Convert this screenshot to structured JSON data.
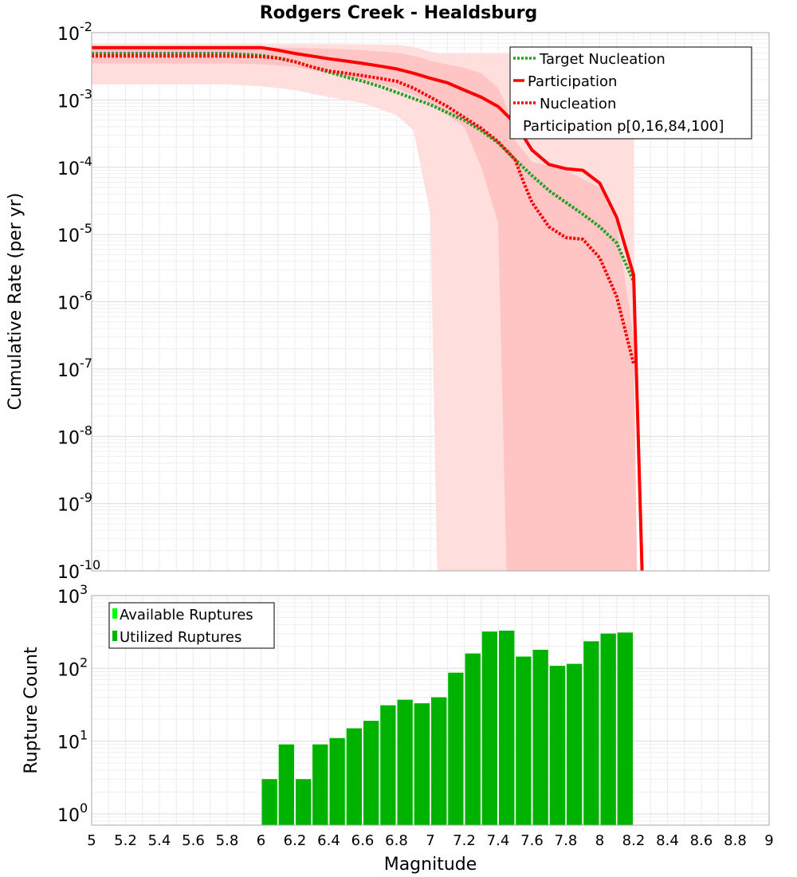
{
  "chart_data": [
    {
      "type": "line",
      "title": "Rodgers Creek - Healdsburg",
      "xlabel": "",
      "ylabel": "Cumulative Rate (per yr)",
      "xlim": [
        5,
        9
      ],
      "ylim": [
        1e-10,
        0.01
      ],
      "yscale": "log",
      "grid": true,
      "legend_position": "top-right",
      "ytick_labels": [
        {
          "value": 0.01,
          "base": "10",
          "exp": "-2"
        },
        {
          "value": 0.001,
          "base": "10",
          "exp": "-3"
        },
        {
          "value": 0.0001,
          "base": "10",
          "exp": "-4"
        },
        {
          "value": 1e-05,
          "base": "10",
          "exp": "-5"
        },
        {
          "value": 1e-06,
          "base": "10",
          "exp": "-6"
        },
        {
          "value": 1e-07,
          "base": "10",
          "exp": "-7"
        },
        {
          "value": 1e-08,
          "base": "10",
          "exp": "-8"
        },
        {
          "value": 1e-09,
          "base": "10",
          "exp": "-9"
        },
        {
          "value": 1e-10,
          "base": "10",
          "exp": "-10"
        }
      ],
      "bands": [
        {
          "name": "Participation p[0,16,84,100]",
          "kind": "p0-p100",
          "color": "#ffdede",
          "x": [
            5.0,
            5.8,
            6.0,
            6.2,
            6.4,
            6.6,
            6.8,
            6.9,
            7.0,
            7.04,
            7.05,
            7.06,
            7.1,
            7.2,
            7.3,
            7.4,
            7.6,
            7.8,
            8.0,
            8.1,
            8.2,
            8.21
          ],
          "upper": [
            0.0068,
            0.0068,
            0.0068,
            0.0068,
            0.0068,
            0.0067,
            0.0066,
            0.0062,
            0.0052,
            0.0049,
            0.0049,
            0.0049,
            0.0049,
            0.0049,
            0.0049,
            0.0049,
            0.0049,
            0.0049,
            0.0049,
            0.0049,
            0.0049,
            1e-10
          ],
          "lower": [
            0.0017,
            0.0017,
            0.0016,
            0.0014,
            0.0011,
            0.0009,
            0.0006,
            0.00035,
            2e-05,
            1e-10,
            1e-10,
            1e-10,
            1e-10,
            1e-10,
            1e-10,
            1e-10,
            1e-10,
            1e-10,
            1e-10,
            1e-10,
            1e-10,
            1e-10
          ]
        },
        {
          "name": "Participation p16-p84",
          "kind": "p16-p84",
          "color": "#ffc4c4",
          "x": [
            5.0,
            5.8,
            6.0,
            6.2,
            6.4,
            6.6,
            6.8,
            6.85,
            6.9,
            6.95,
            7.0,
            7.2,
            7.3,
            7.4,
            7.45,
            7.5,
            7.6,
            7.8,
            8.0,
            8.1,
            8.2,
            8.22
          ],
          "upper": [
            0.006,
            0.006,
            0.006,
            0.006,
            0.0058,
            0.0055,
            0.005,
            0.0048,
            0.0045,
            0.0042,
            0.0038,
            0.003,
            0.0025,
            0.0015,
            0.0008,
            0.00025,
            0.00012,
            9e-05,
            5e-05,
            1.5e-05,
            3e-07,
            1e-10
          ],
          "lower": [
            0.0035,
            0.0035,
            0.0034,
            0.0031,
            0.0025,
            0.002,
            0.0015,
            0.0013,
            0.0012,
            0.00105,
            0.0009,
            0.0004,
            0.0001,
            1.5e-05,
            1e-10,
            1e-10,
            1e-10,
            1e-10,
            1e-10,
            1e-10,
            1e-10,
            1e-10
          ]
        }
      ],
      "series": [
        {
          "name": "Target Nucleation",
          "style": "dotted",
          "color": "#22a022",
          "x": [
            5.0,
            5.2,
            5.4,
            5.6,
            5.8,
            6.0,
            6.1,
            6.2,
            6.3,
            6.4,
            6.5,
            6.6,
            6.7,
            6.8,
            6.9,
            7.0,
            7.1,
            7.2,
            7.3,
            7.4,
            7.5,
            7.6,
            7.7,
            7.8,
            7.9,
            8.0,
            8.1,
            8.2
          ],
          "y": [
            0.0049,
            0.0049,
            0.0049,
            0.0049,
            0.0049,
            0.0046,
            0.0042,
            0.0037,
            0.0031,
            0.0026,
            0.0022,
            0.0019,
            0.0016,
            0.0013,
            0.00105,
            0.00085,
            0.00065,
            0.0005,
            0.00035,
            0.00023,
            0.00013,
            7.5e-05,
            4.5e-05,
            3e-05,
            2e-05,
            1.3e-05,
            7.5e-06,
            2e-06
          ]
        },
        {
          "name": "Participation",
          "style": "solid",
          "color": "#ff0000",
          "x": [
            5.0,
            5.2,
            5.4,
            5.6,
            5.8,
            6.0,
            6.1,
            6.2,
            6.3,
            6.4,
            6.5,
            6.6,
            6.7,
            6.8,
            6.9,
            7.0,
            7.1,
            7.2,
            7.3,
            7.4,
            7.5,
            7.6,
            7.7,
            7.8,
            7.9,
            8.0,
            8.1,
            8.2,
            8.25
          ],
          "y": [
            0.006,
            0.006,
            0.006,
            0.006,
            0.006,
            0.006,
            0.0055,
            0.0049,
            0.0045,
            0.0041,
            0.0038,
            0.0035,
            0.0032,
            0.0029,
            0.0025,
            0.0021,
            0.0018,
            0.0014,
            0.0011,
            0.0008,
            0.00045,
            0.00018,
            0.00011,
            9.5e-05,
            9e-05,
            5.8e-05,
            1.8e-05,
            2.5e-06,
            1e-10
          ]
        },
        {
          "name": "Nucleation",
          "style": "dotted",
          "color": "#ff0000",
          "x": [
            5.0,
            5.2,
            5.4,
            5.6,
            5.8,
            6.0,
            6.1,
            6.2,
            6.3,
            6.4,
            6.5,
            6.6,
            6.7,
            6.8,
            6.9,
            7.0,
            7.1,
            7.2,
            7.3,
            7.4,
            7.5,
            7.55,
            7.6,
            7.7,
            7.8,
            7.9,
            8.0,
            8.1,
            8.2
          ],
          "y": [
            0.0045,
            0.0045,
            0.0045,
            0.0045,
            0.0045,
            0.0044,
            0.0042,
            0.0037,
            0.0031,
            0.0027,
            0.0025,
            0.0023,
            0.0021,
            0.0019,
            0.0015,
            0.0011,
            0.0008,
            0.00055,
            0.00038,
            0.00024,
            0.00013,
            6e-05,
            3e-05,
            1.3e-05,
            9e-06,
            8.5e-06,
            4.5e-06,
            1.2e-06,
            1.2e-07
          ]
        }
      ]
    },
    {
      "type": "bar",
      "title": "",
      "xlabel": "Magnitude",
      "ylabel": "Rupture Count",
      "xlim": [
        5,
        9
      ],
      "ylim": [
        0.7,
        1000
      ],
      "yscale": "log",
      "grid": true,
      "legend_position": "top-left",
      "bar_width": 0.1,
      "ytick_labels": [
        {
          "value": 1000,
          "base": "10",
          "exp": "3"
        },
        {
          "value": 100,
          "base": "10",
          "exp": "2"
        },
        {
          "value": 10,
          "base": "10",
          "exp": "1"
        },
        {
          "value": 1,
          "base": "10",
          "exp": "0"
        }
      ],
      "xtick_labels": [
        "5",
        "5.2",
        "5.4",
        "5.6",
        "5.8",
        "6",
        "6.2",
        "6.4",
        "6.6",
        "6.8",
        "7",
        "7.2",
        "7.4",
        "7.6",
        "7.8",
        "8",
        "8.2",
        "8.4",
        "8.6",
        "8.8",
        "9"
      ],
      "categories": [
        6.05,
        6.15,
        6.25,
        6.35,
        6.45,
        6.55,
        6.65,
        6.75,
        6.85,
        6.95,
        7.05,
        7.15,
        7.25,
        7.35,
        7.45,
        7.55,
        7.65,
        7.75,
        7.85,
        7.95,
        8.05,
        8.15
      ],
      "series": [
        {
          "name": "Available Ruptures",
          "color": "#00ff00",
          "values": [
            3,
            9,
            3,
            9,
            11,
            15,
            19,
            31,
            37,
            33,
            40,
            87,
            160,
            320,
            330,
            145,
            180,
            108,
            115,
            235,
            300,
            310
          ]
        },
        {
          "name": "Utilized Ruptures",
          "color": "#00b200",
          "values": [
            3,
            9,
            3,
            9,
            11,
            15,
            19,
            31,
            37,
            33,
            40,
            87,
            160,
            320,
            330,
            145,
            180,
            108,
            115,
            235,
            300,
            310
          ]
        }
      ]
    }
  ]
}
